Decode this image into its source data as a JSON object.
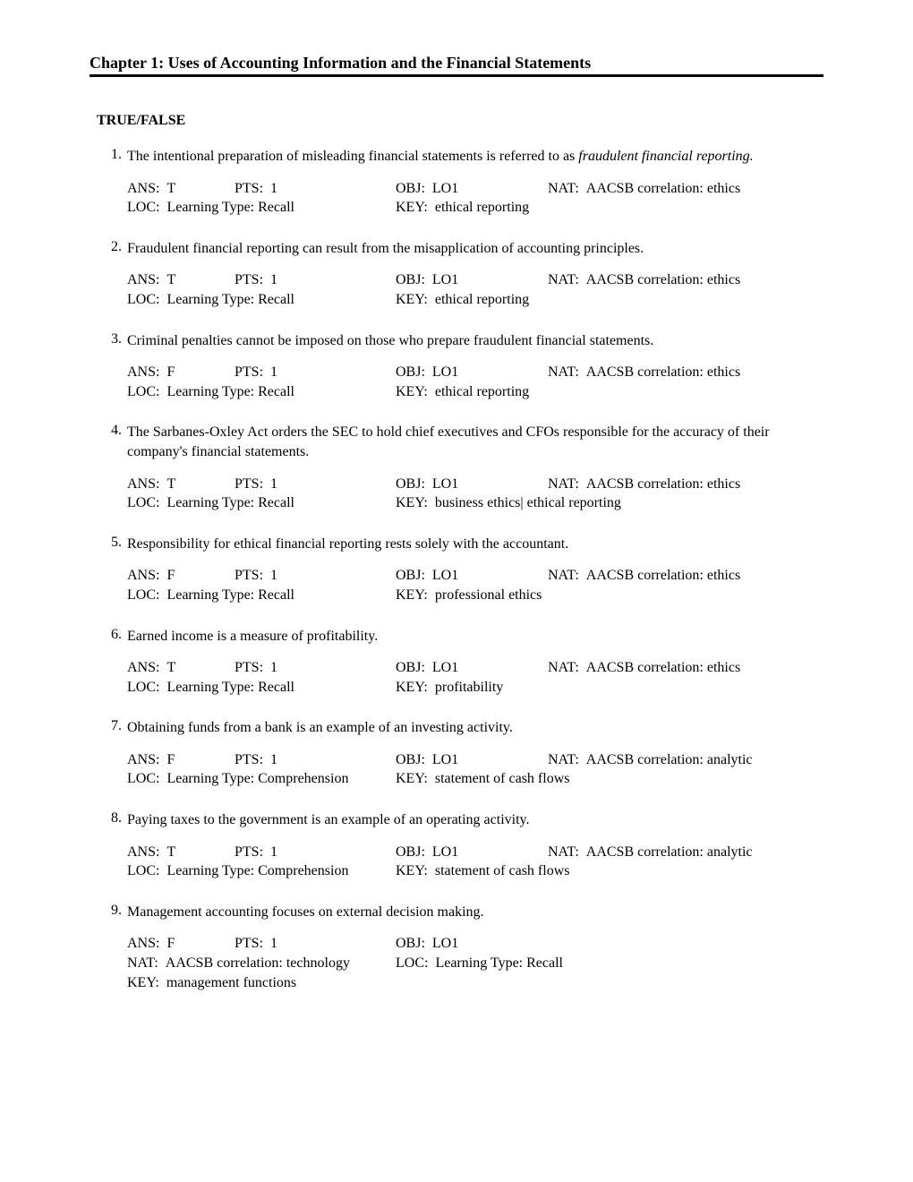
{
  "chapter_title": "Chapter 1: Uses of Accounting Information and the Financial Statements",
  "section_header": "TRUE/FALSE",
  "labels": {
    "ans": "ANS:  ",
    "pts": "PTS:  ",
    "obj": "OBJ:  ",
    "nat": "NAT:  ",
    "loc": "LOC:  ",
    "key": "KEY:  "
  },
  "questions": [
    {
      "num": "1.",
      "text_pre": "The intentional preparation of misleading financial statements is referred to as ",
      "text_italic": "fraudulent financial reporting.",
      "text_post": "",
      "ans": "T",
      "pts": "1",
      "obj": "LO1",
      "nat": "AACSB correlation: ethics",
      "loc": "Learning Type: Recall",
      "key": "ethical reporting",
      "layout": "std"
    },
    {
      "num": "2.",
      "text_pre": "Fraudulent financial reporting can result from the misapplication of accounting principles.",
      "text_italic": "",
      "text_post": "",
      "ans": "T",
      "pts": "1",
      "obj": "LO1",
      "nat": "AACSB correlation: ethics",
      "loc": "Learning Type: Recall",
      "key": "ethical reporting",
      "layout": "std"
    },
    {
      "num": "3.",
      "text_pre": "Criminal penalties cannot be imposed on those who prepare fraudulent financial statements.",
      "text_italic": "",
      "text_post": "",
      "ans": "F",
      "pts": "1",
      "obj": "LO1",
      "nat": "AACSB correlation: ethics",
      "loc": "Learning Type: Recall",
      "key": "ethical reporting",
      "layout": "std"
    },
    {
      "num": "4.",
      "text_pre": "The Sarbanes-Oxley Act orders the SEC to hold chief executives and CFOs responsible for the accuracy of their company's financial statements.",
      "text_italic": "",
      "text_post": "",
      "ans": "T",
      "pts": "1",
      "obj": "LO1",
      "nat": "AACSB correlation: ethics",
      "loc": "Learning Type: Recall",
      "key": "business ethics| ethical reporting",
      "layout": "std"
    },
    {
      "num": "5.",
      "text_pre": "Responsibility for ethical financial reporting rests solely with the accountant.",
      "text_italic": "",
      "text_post": "",
      "ans": "F",
      "pts": "1",
      "obj": "LO1",
      "nat": "AACSB correlation: ethics",
      "loc": "Learning Type: Recall",
      "key": "professional ethics",
      "layout": "std"
    },
    {
      "num": "6.",
      "text_pre": "Earned income is a measure of profitability.",
      "text_italic": "",
      "text_post": "",
      "ans": "T",
      "pts": "1",
      "obj": "LO1",
      "nat": "AACSB correlation: ethics",
      "loc": "Learning Type: Recall",
      "key": "profitability",
      "layout": "std"
    },
    {
      "num": "7.",
      "text_pre": "Obtaining funds from a bank is an example of an investing activity.",
      "text_italic": "",
      "text_post": "",
      "ans": "F",
      "pts": "1",
      "obj": "LO1",
      "nat": "AACSB correlation: analytic",
      "loc": "Learning Type: Comprehension",
      "key": "statement of cash flows",
      "layout": "std"
    },
    {
      "num": "8.",
      "text_pre": "Paying taxes to the government is an example of an operating activity.",
      "text_italic": "",
      "text_post": "",
      "ans": "T",
      "pts": "1",
      "obj": "LO1",
      "nat": "AACSB correlation: analytic",
      "loc": "Learning Type: Comprehension",
      "key": "statement of cash flows",
      "layout": "std"
    },
    {
      "num": "9.",
      "text_pre": "Management accounting focuses on external decision making.",
      "text_italic": "",
      "text_post": "",
      "ans": "F",
      "pts": "1",
      "obj": "LO1",
      "nat": "AACSB correlation: technology",
      "loc": "Learning Type: Recall",
      "key": "management functions",
      "layout": "alt"
    }
  ]
}
